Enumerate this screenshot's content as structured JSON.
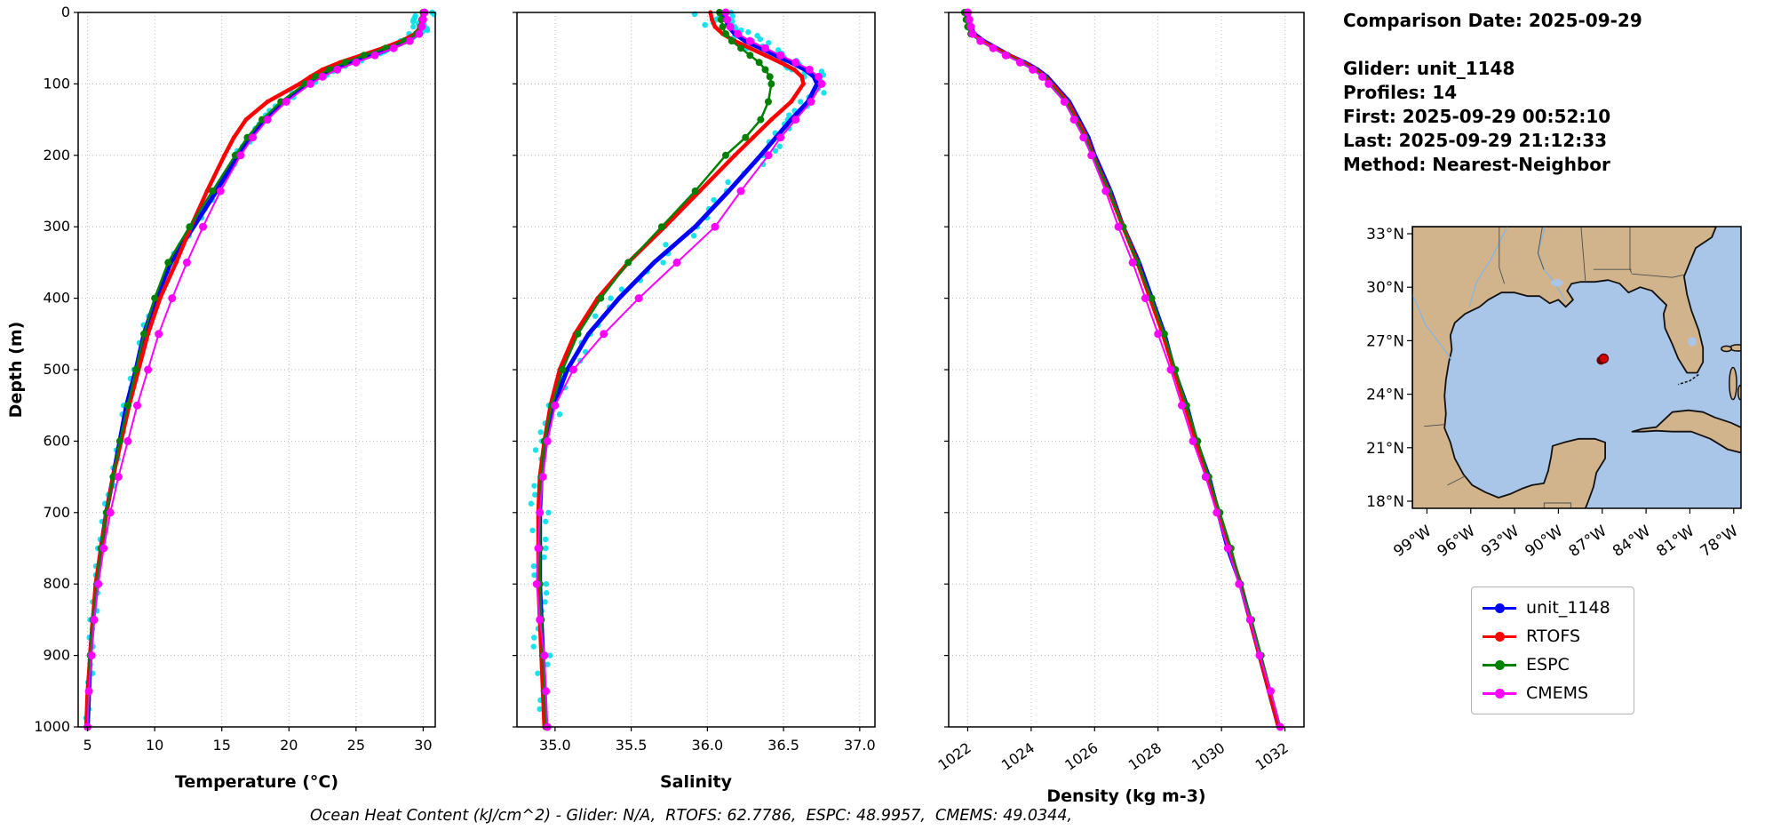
{
  "info_panel": {
    "comparison_date": "Comparison Date: 2025-09-29",
    "glider": "Glider: unit_1148",
    "profiles": "Profiles: 14",
    "first": "First: 2025-09-29 00:52:10",
    "last": "Last: 2025-09-29 21:12:33",
    "method": "Method: Nearest-Neighbor"
  },
  "footer_note": "Ocean Heat Content (kJ/cm^2) - Glider: N/A,  RTOFS: 62.7786,  ESPC: 48.9957,  CMEMS: 49.0344,",
  "legend": {
    "items": [
      {
        "label": "unit_1148",
        "color": "#0000ff"
      },
      {
        "label": "RTOFS",
        "color": "#ff0000"
      },
      {
        "label": "ESPC",
        "color": "#008000"
      },
      {
        "label": "CMEMS",
        "color": "#ff00ff"
      }
    ]
  },
  "map": {
    "land_color": "#d2b48c",
    "ocean_color": "#a9c6e8",
    "coast_color": "#111111",
    "lat_ticks": [
      "33°N",
      "30°N",
      "27°N",
      "24°N",
      "21°N",
      "18°N"
    ],
    "lat_tick_values": [
      33,
      30,
      27,
      24,
      21,
      18
    ],
    "lon_ticks": [
      "99°W",
      "96°W",
      "93°W",
      "90°W",
      "87°W",
      "84°W",
      "81°W",
      "78°W"
    ],
    "lon_tick_values": [
      -99,
      -96,
      -93,
      -90,
      -87,
      -84,
      -81,
      -78
    ],
    "marker": {
      "lon": -86.9,
      "lat": 26.0,
      "color": "#d40000",
      "edge": "#6b0000"
    }
  },
  "chart_data": [
    {
      "type": "line",
      "name": "temperature-profile",
      "xlabel": "Temperature (°C)",
      "ylabel": "Depth (m)",
      "xlim": [
        4.3,
        30.9
      ],
      "ylim": [
        0,
        1000
      ],
      "y_inverted": true,
      "grid": true,
      "show_ytick_labels": true,
      "xticks": [
        5,
        10,
        15,
        20,
        25,
        30
      ],
      "xtick_labels": [
        "5",
        "10",
        "15",
        "20",
        "25",
        "30"
      ],
      "yticks": [
        0,
        100,
        200,
        300,
        400,
        500,
        600,
        700,
        800,
        900,
        1000
      ],
      "raw_scatter": {
        "name": "glider-raw-points",
        "color": "#00e0e8",
        "jitter": 0.25
      },
      "depths": [
        0,
        10,
        20,
        30,
        40,
        50,
        60,
        70,
        80,
        90,
        100,
        125,
        150,
        175,
        200,
        250,
        300,
        350,
        400,
        450,
        500,
        550,
        600,
        650,
        700,
        750,
        800,
        850,
        900,
        950,
        1000
      ],
      "series": [
        {
          "name": "unit_1148",
          "color": "#0000ff",
          "lw": 5,
          "ms": 2.5,
          "values": [
            30.1,
            30.0,
            29.9,
            29.6,
            28.8,
            27.6,
            26.2,
            24.6,
            23.2,
            22.2,
            21.4,
            19.6,
            18.2,
            17.1,
            16.2,
            14.6,
            12.9,
            11.2,
            10.1,
            9.2,
            8.6,
            7.9,
            7.4,
            6.9,
            6.4,
            6.0,
            5.7,
            5.4,
            5.2,
            5.1,
            5.0
          ]
        },
        {
          "name": "RTOFS",
          "color": "#ff0000",
          "lw": 4.5,
          "ms": 2.5,
          "values": [
            30.0,
            29.9,
            29.8,
            29.4,
            28.4,
            27.0,
            25.4,
            23.8,
            22.5,
            21.6,
            20.8,
            18.4,
            16.8,
            15.9,
            15.2,
            13.9,
            12.7,
            11.6,
            10.4,
            9.5,
            8.8,
            8.1,
            7.5,
            6.9,
            6.4,
            6.0,
            5.6,
            5.4,
            5.2,
            5.0,
            4.9
          ]
        },
        {
          "name": "ESPC",
          "color": "#008000",
          "lw": 2.5,
          "ms": 4,
          "values": [
            30.0,
            29.9,
            29.8,
            29.5,
            28.6,
            27.2,
            25.6,
            24.2,
            23.0,
            22.0,
            21.2,
            19.4,
            18.0,
            16.9,
            16.0,
            14.3,
            12.6,
            11.0,
            10.0,
            9.2,
            8.6,
            8.0,
            7.4,
            6.9,
            6.4,
            6.0,
            5.7,
            5.4,
            5.2,
            5.1,
            5.0
          ]
        },
        {
          "name": "CMEMS",
          "color": "#ff00ff",
          "lw": 2,
          "ms": 4.5,
          "values": [
            30.1,
            30.0,
            29.9,
            29.7,
            29.0,
            27.8,
            26.4,
            25.0,
            23.6,
            22.5,
            21.6,
            19.8,
            18.4,
            17.3,
            16.4,
            14.9,
            13.6,
            12.4,
            11.3,
            10.3,
            9.5,
            8.7,
            8.0,
            7.3,
            6.7,
            6.2,
            5.8,
            5.5,
            5.3,
            5.1,
            5.0
          ]
        }
      ]
    },
    {
      "type": "line",
      "name": "salinity-profile",
      "xlabel": "Salinity",
      "ylabel": "",
      "xlim": [
        34.75,
        37.1
      ],
      "ylim": [
        0,
        1000
      ],
      "y_inverted": true,
      "grid": true,
      "show_ytick_labels": false,
      "xticks": [
        35.0,
        35.5,
        36.0,
        36.5,
        37.0
      ],
      "xtick_labels": [
        "35.0",
        "35.5",
        "36.0",
        "36.5",
        "37.0"
      ],
      "yticks": [
        0,
        100,
        200,
        300,
        400,
        500,
        600,
        700,
        800,
        900,
        1000
      ],
      "raw_scatter": {
        "name": "glider-raw-points",
        "color": "#00e0e8",
        "jitter": 0.06
      },
      "depths": [
        0,
        10,
        20,
        30,
        40,
        50,
        60,
        70,
        80,
        90,
        100,
        125,
        150,
        175,
        200,
        250,
        300,
        350,
        400,
        450,
        500,
        550,
        600,
        650,
        700,
        750,
        800,
        850,
        900,
        950,
        1000
      ],
      "series": [
        {
          "name": "unit_1148",
          "color": "#0000ff",
          "lw": 5,
          "ms": 2.5,
          "values": [
            36.1,
            36.12,
            36.14,
            36.18,
            36.25,
            36.35,
            36.45,
            36.55,
            36.64,
            36.7,
            36.72,
            36.66,
            36.55,
            36.45,
            36.35,
            36.14,
            35.92,
            35.65,
            35.42,
            35.22,
            35.08,
            34.99,
            34.94,
            34.91,
            34.9,
            34.9,
            34.9,
            34.91,
            34.92,
            34.93,
            34.94
          ]
        },
        {
          "name": "RTOFS",
          "color": "#ff0000",
          "lw": 4.5,
          "ms": 2.5,
          "values": [
            36.02,
            36.03,
            36.05,
            36.1,
            36.18,
            36.28,
            36.38,
            36.48,
            36.57,
            36.62,
            36.63,
            36.55,
            36.42,
            36.3,
            36.18,
            35.95,
            35.72,
            35.48,
            35.28,
            35.13,
            35.03,
            34.97,
            34.93,
            34.9,
            34.89,
            34.89,
            34.89,
            34.9,
            34.91,
            34.92,
            34.93
          ]
        },
        {
          "name": "ESPC",
          "color": "#008000",
          "lw": 2.5,
          "ms": 4,
          "values": [
            36.08,
            36.09,
            36.1,
            36.12,
            36.16,
            36.22,
            36.28,
            36.34,
            36.38,
            36.41,
            36.42,
            36.4,
            36.35,
            36.25,
            36.12,
            35.92,
            35.7,
            35.48,
            35.3,
            35.15,
            35.05,
            34.98,
            34.93,
            34.91,
            34.9,
            34.9,
            34.9,
            34.91,
            34.92,
            34.93,
            34.94
          ]
        },
        {
          "name": "CMEMS",
          "color": "#ff00ff",
          "lw": 2,
          "ms": 4.5,
          "values": [
            36.12,
            36.13,
            36.15,
            36.2,
            36.28,
            36.38,
            36.48,
            36.58,
            36.67,
            36.73,
            36.75,
            36.68,
            36.58,
            36.48,
            36.4,
            36.22,
            36.05,
            35.8,
            35.55,
            35.32,
            35.12,
            35.0,
            34.95,
            34.92,
            34.9,
            34.89,
            34.88,
            34.9,
            34.93,
            34.94,
            34.95
          ]
        }
      ]
    },
    {
      "type": "line",
      "name": "density-profile",
      "xlabel": "Density (kg m-3)",
      "ylabel": "",
      "xlim": [
        1021.4,
        1032.6
      ],
      "ylim": [
        0,
        1000
      ],
      "y_inverted": true,
      "grid": true,
      "show_ytick_labels": false,
      "xticks": [
        1022,
        1024,
        1026,
        1028,
        1030,
        1032
      ],
      "xtick_labels": [
        "1022",
        "1024",
        "1026",
        "1028",
        "1030",
        "1032"
      ],
      "xtick_rotation": -35,
      "yticks": [
        0,
        100,
        200,
        300,
        400,
        500,
        600,
        700,
        800,
        900,
        1000
      ],
      "depths": [
        0,
        10,
        20,
        30,
        40,
        50,
        60,
        70,
        80,
        90,
        100,
        125,
        150,
        175,
        200,
        250,
        300,
        350,
        400,
        450,
        500,
        550,
        600,
        650,
        700,
        750,
        800,
        850,
        900,
        950,
        1000
      ],
      "series": [
        {
          "name": "unit_1148",
          "color": "#0000ff",
          "lw": 5,
          "ms": 2.5,
          "values": [
            1022.0,
            1022.05,
            1022.1,
            1022.2,
            1022.5,
            1022.9,
            1023.3,
            1023.8,
            1024.2,
            1024.5,
            1024.7,
            1025.2,
            1025.5,
            1025.8,
            1026.0,
            1026.5,
            1026.9,
            1027.4,
            1027.8,
            1028.2,
            1028.5,
            1028.9,
            1029.2,
            1029.6,
            1029.9,
            1030.2,
            1030.6,
            1030.9,
            1031.2,
            1031.5,
            1031.8
          ]
        },
        {
          "name": "RTOFS",
          "color": "#ff0000",
          "lw": 4.5,
          "ms": 2.5,
          "values": [
            1021.95,
            1022.0,
            1022.05,
            1022.15,
            1022.45,
            1022.85,
            1023.3,
            1023.75,
            1024.15,
            1024.45,
            1024.65,
            1025.15,
            1025.45,
            1025.75,
            1025.95,
            1026.45,
            1026.9,
            1027.35,
            1027.75,
            1028.15,
            1028.5,
            1028.85,
            1029.2,
            1029.55,
            1029.9,
            1030.25,
            1030.6,
            1030.9,
            1031.2,
            1031.5,
            1031.8
          ]
        },
        {
          "name": "ESPC",
          "color": "#008000",
          "lw": 2.5,
          "ms": 4,
          "values": [
            1021.9,
            1021.95,
            1022.0,
            1022.1,
            1022.4,
            1022.8,
            1023.25,
            1023.7,
            1024.1,
            1024.4,
            1024.6,
            1025.1,
            1025.4,
            1025.7,
            1025.95,
            1026.45,
            1026.9,
            1027.35,
            1027.8,
            1028.2,
            1028.55,
            1028.9,
            1029.25,
            1029.6,
            1029.95,
            1030.3,
            1030.6,
            1030.95,
            1031.25,
            1031.55,
            1031.85
          ]
        },
        {
          "name": "CMEMS",
          "color": "#ff00ff",
          "lw": 2,
          "ms": 4.5,
          "values": [
            1022.0,
            1022.05,
            1022.1,
            1022.15,
            1022.4,
            1022.8,
            1023.2,
            1023.65,
            1024.05,
            1024.35,
            1024.55,
            1025.05,
            1025.35,
            1025.65,
            1025.9,
            1026.35,
            1026.75,
            1027.2,
            1027.6,
            1028.0,
            1028.4,
            1028.75,
            1029.1,
            1029.5,
            1029.85,
            1030.2,
            1030.55,
            1030.9,
            1031.2,
            1031.55,
            1031.85
          ]
        }
      ]
    }
  ]
}
